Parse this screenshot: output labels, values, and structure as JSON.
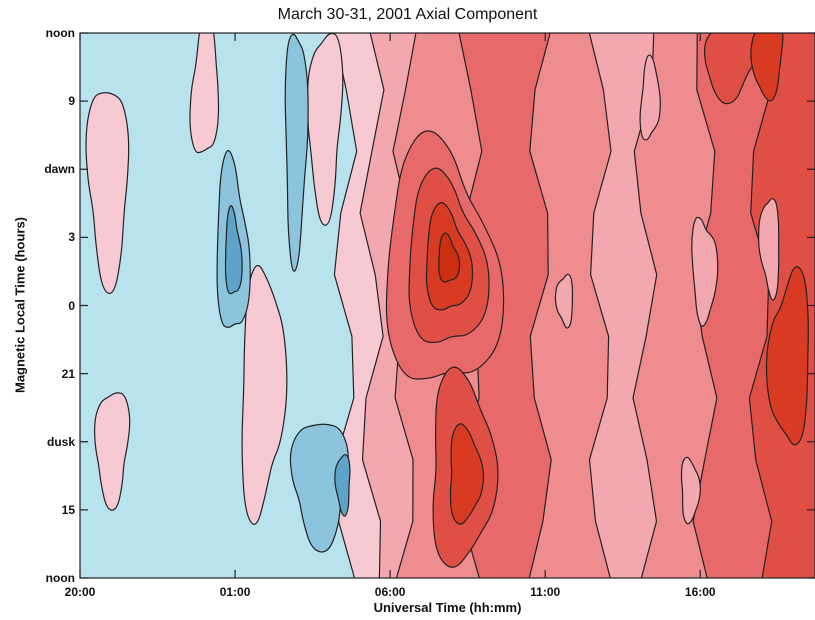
{
  "chart_data": {
    "type": "heatmap",
    "title": "March 30-31, 2001 Axial Component",
    "xlabel": "Universal Time (hh:mm)",
    "ylabel": "Magnetic Local Time (hours)",
    "x_tick_labels": [
      "20:00",
      "01:00",
      "06:00",
      "11:00",
      "16:00"
    ],
    "y_tick_labels": [
      "noon",
      "9",
      "dawn",
      "3",
      "0",
      "21",
      "dusk",
      "15",
      "noon"
    ],
    "x_range_hours_ut": [
      20.0,
      43.7
    ],
    "y_range_mlt_hours": [
      12,
      36
    ],
    "colorscale": {
      "negative": [
        "#b9e2ef",
        "#8cc4dd",
        "#5ea4c8",
        "#3a7fb0"
      ],
      "positive": [
        "#f7c9d3",
        "#f3a8b0",
        "#ee8c8f",
        "#e8696a",
        "#e04f45",
        "#d93a22",
        "#cc2f10"
      ]
    },
    "contour_color": "#222222",
    "grid": false,
    "legend": "none"
  }
}
